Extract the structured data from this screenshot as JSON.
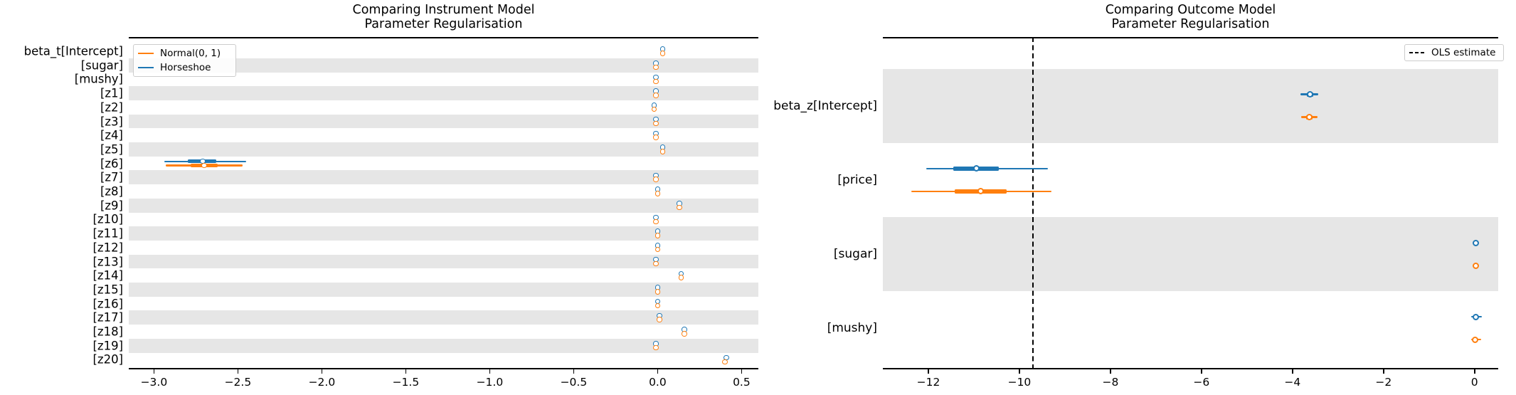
{
  "figure": {
    "background": "#ffffff",
    "text_color": "#000000",
    "band_color": "#e6e6e6",
    "spine_color": "#000000"
  },
  "colors": {
    "horseshoe": "#1f77b4",
    "normal": "#ff7f0e",
    "ols": "#000000"
  },
  "chart_data": [
    {
      "type": "forest",
      "title_lines": [
        "Comparing Instrument Model",
        "Parameter Regularisation"
      ],
      "xlabel": "",
      "ylabel": "",
      "xlim": [
        -3.15,
        0.6
      ],
      "grid": false,
      "xticks": [
        -3.0,
        -2.5,
        -2.0,
        -1.5,
        -1.0,
        -0.5,
        0.0,
        0.5
      ],
      "xtick_labels": [
        "−3.0",
        "−2.5",
        "−2.0",
        "−1.5",
        "−1.0",
        "−0.5",
        "0.0",
        "0.5"
      ],
      "legend_position": "top-left",
      "legend": [
        {
          "label": "Normal(0, 1)",
          "color": "#ff7f0e",
          "dash": false
        },
        {
          "label": "Horseshoe",
          "color": "#1f77b4",
          "dash": false
        }
      ],
      "series_order": [
        "horseshoe",
        "normal"
      ],
      "rows": [
        {
          "label": "beta_t[Intercept]",
          "shaded": false,
          "series": {
            "horseshoe": [
              0.03,
              0.03,
              0.03,
              0.03,
              0.03
            ],
            "normal": [
              0.03,
              0.03,
              0.03,
              0.03,
              0.03
            ]
          }
        },
        {
          "label": "[sugar]",
          "shaded": true,
          "series": {
            "horseshoe": [
              -0.01,
              -0.01,
              -0.01,
              -0.01,
              -0.01
            ],
            "normal": [
              -0.01,
              -0.01,
              -0.01,
              -0.01,
              -0.01
            ]
          }
        },
        {
          "label": "[mushy]",
          "shaded": false,
          "series": {
            "horseshoe": [
              -0.01,
              -0.01,
              -0.01,
              -0.01,
              -0.01
            ],
            "normal": [
              -0.01,
              -0.01,
              -0.01,
              -0.01,
              -0.01
            ]
          }
        },
        {
          "label": "[z1]",
          "shaded": true,
          "series": {
            "horseshoe": [
              -0.01,
              -0.01,
              -0.01,
              -0.01,
              -0.01
            ],
            "normal": [
              -0.01,
              -0.01,
              -0.01,
              -0.01,
              -0.01
            ]
          }
        },
        {
          "label": "[z2]",
          "shaded": false,
          "series": {
            "horseshoe": [
              -0.02,
              -0.02,
              -0.02,
              -0.02,
              -0.02
            ],
            "normal": [
              -0.02,
              -0.02,
              -0.02,
              -0.02,
              -0.02
            ]
          }
        },
        {
          "label": "[z3]",
          "shaded": true,
          "series": {
            "horseshoe": [
              -0.01,
              -0.01,
              -0.01,
              -0.01,
              -0.01
            ],
            "normal": [
              -0.01,
              -0.01,
              -0.01,
              -0.01,
              -0.01
            ]
          }
        },
        {
          "label": "[z4]",
          "shaded": false,
          "series": {
            "horseshoe": [
              -0.01,
              -0.01,
              -0.01,
              -0.01,
              -0.01
            ],
            "normal": [
              -0.01,
              -0.01,
              -0.01,
              -0.01,
              -0.01
            ]
          }
        },
        {
          "label": "[z5]",
          "shaded": true,
          "series": {
            "horseshoe": [
              0.03,
              0.03,
              0.03,
              0.03,
              0.03
            ],
            "normal": [
              0.03,
              0.03,
              0.03,
              0.03,
              0.03
            ]
          }
        },
        {
          "label": "[z6]",
          "shaded": false,
          "series": {
            "horseshoe": [
              -2.94,
              -2.8,
              -2.71,
              -2.63,
              -2.45
            ],
            "normal": [
              -2.93,
              -2.78,
              -2.7,
              -2.62,
              -2.47
            ]
          }
        },
        {
          "label": "[z7]",
          "shaded": true,
          "series": {
            "horseshoe": [
              -0.01,
              -0.01,
              -0.01,
              -0.01,
              -0.01
            ],
            "normal": [
              -0.01,
              -0.01,
              -0.01,
              -0.01,
              -0.01
            ]
          }
        },
        {
          "label": "[z8]",
          "shaded": false,
          "series": {
            "horseshoe": [
              0.0,
              0.0,
              0.0,
              0.0,
              0.0
            ],
            "normal": [
              0.0,
              0.0,
              0.0,
              0.0,
              0.0
            ]
          }
        },
        {
          "label": "[z9]",
          "shaded": true,
          "series": {
            "horseshoe": [
              0.13,
              0.13,
              0.13,
              0.13,
              0.13
            ],
            "normal": [
              0.13,
              0.13,
              0.13,
              0.13,
              0.13
            ]
          }
        },
        {
          "label": "[z10]",
          "shaded": false,
          "series": {
            "horseshoe": [
              -0.01,
              -0.01,
              -0.01,
              -0.01,
              -0.01
            ],
            "normal": [
              -0.01,
              -0.01,
              -0.01,
              -0.01,
              -0.01
            ]
          }
        },
        {
          "label": "[z11]",
          "shaded": true,
          "series": {
            "horseshoe": [
              0.0,
              0.0,
              0.0,
              0.0,
              0.0
            ],
            "normal": [
              0.0,
              0.0,
              0.0,
              0.0,
              0.0
            ]
          }
        },
        {
          "label": "[z12]",
          "shaded": false,
          "series": {
            "horseshoe": [
              0.0,
              0.0,
              0.0,
              0.0,
              0.0
            ],
            "normal": [
              0.0,
              0.0,
              0.0,
              0.0,
              0.0
            ]
          }
        },
        {
          "label": "[z13]",
          "shaded": true,
          "series": {
            "horseshoe": [
              -0.01,
              -0.01,
              -0.01,
              -0.01,
              -0.01
            ],
            "normal": [
              -0.01,
              -0.01,
              -0.01,
              -0.01,
              -0.01
            ]
          }
        },
        {
          "label": "[z14]",
          "shaded": false,
          "series": {
            "horseshoe": [
              0.14,
              0.14,
              0.14,
              0.14,
              0.14
            ],
            "normal": [
              0.14,
              0.14,
              0.14,
              0.14,
              0.14
            ]
          }
        },
        {
          "label": "[z15]",
          "shaded": true,
          "series": {
            "horseshoe": [
              0.0,
              0.0,
              0.0,
              0.0,
              0.0
            ],
            "normal": [
              0.0,
              0.0,
              0.0,
              0.0,
              0.0
            ]
          }
        },
        {
          "label": "[z16]",
          "shaded": false,
          "series": {
            "horseshoe": [
              0.0,
              0.0,
              0.0,
              0.0,
              0.0
            ],
            "normal": [
              0.0,
              0.0,
              0.0,
              0.0,
              0.0
            ]
          }
        },
        {
          "label": "[z17]",
          "shaded": true,
          "series": {
            "horseshoe": [
              0.01,
              0.01,
              0.01,
              0.01,
              0.01
            ],
            "normal": [
              0.01,
              0.01,
              0.01,
              0.01,
              0.01
            ]
          }
        },
        {
          "label": "[z18]",
          "shaded": false,
          "series": {
            "horseshoe": [
              0.16,
              0.16,
              0.16,
              0.16,
              0.16
            ],
            "normal": [
              0.16,
              0.16,
              0.16,
              0.16,
              0.16
            ]
          }
        },
        {
          "label": "[z19]",
          "shaded": true,
          "series": {
            "horseshoe": [
              -0.01,
              -0.01,
              -0.01,
              -0.01,
              -0.01
            ],
            "normal": [
              -0.01,
              -0.01,
              -0.01,
              -0.01,
              -0.01
            ]
          }
        },
        {
          "label": "[z20]",
          "shaded": false,
          "series": {
            "horseshoe": [
              0.41,
              0.41,
              0.41,
              0.41,
              0.41
            ],
            "normal": [
              0.4,
              0.4,
              0.4,
              0.4,
              0.4
            ]
          }
        }
      ]
    },
    {
      "type": "forest",
      "title_lines": [
        "Comparing Outcome Model",
        "Parameter Regularisation"
      ],
      "xlabel": "",
      "ylabel": "",
      "xlim": [
        -13.0,
        0.52
      ],
      "grid": false,
      "xticks": [
        -12,
        -10,
        -8,
        -6,
        -4,
        -2,
        0
      ],
      "xtick_labels": [
        "−12",
        "−10",
        "−8",
        "−6",
        "−4",
        "−2",
        "0"
      ],
      "legend_position": "top-right",
      "legend": [
        {
          "label": "OLS estimate",
          "color": "#000000",
          "dash": true
        }
      ],
      "ols_estimate": -9.7,
      "series_order": [
        "horseshoe",
        "normal"
      ],
      "rows": [
        {
          "label": "beta_z[Intercept]",
          "shaded": true,
          "series": {
            "horseshoe": [
              -3.82,
              -3.68,
              -3.61,
              -3.54,
              -3.43
            ],
            "normal": [
              -3.81,
              -3.7,
              -3.63,
              -3.56,
              -3.45
            ]
          }
        },
        {
          "label": "[price]",
          "shaded": false,
          "series": {
            "horseshoe": [
              -12.05,
              -11.45,
              -10.95,
              -10.45,
              -9.37
            ],
            "normal": [
              -12.38,
              -11.42,
              -10.85,
              -10.28,
              -9.29
            ]
          }
        },
        {
          "label": "[sugar]",
          "shaded": true,
          "series": {
            "horseshoe": [
              0.03,
              0.03,
              0.03,
              0.03,
              0.03
            ],
            "normal": [
              0.03,
              0.03,
              0.03,
              0.03,
              0.03
            ]
          }
        },
        {
          "label": "[mushy]",
          "shaded": false,
          "series": {
            "horseshoe": [
              -0.07,
              -0.01,
              0.03,
              0.07,
              0.16
            ],
            "normal": [
              -0.08,
              -0.02,
              0.01,
              0.05,
              0.14
            ]
          }
        }
      ]
    }
  ]
}
